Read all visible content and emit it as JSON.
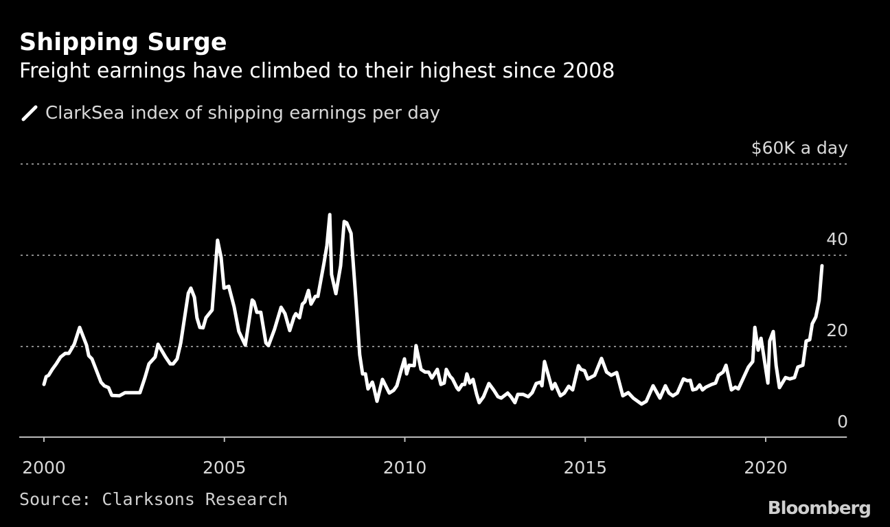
{
  "chart_data": {
    "type": "line",
    "title": "Shipping Surge",
    "subtitle": "Freight earnings have climbed to their highest since 2008",
    "legend": [
      "ClarkSea index of shipping earnings per day"
    ],
    "source": "Source: Clarksons Research",
    "logo": "Bloomberg",
    "xlabel": "",
    "ylabel": "",
    "y_unit_label": "$60K a day",
    "xlim": [
      2000,
      2022.25
    ],
    "ylim": [
      0,
      60
    ],
    "x_ticks": [
      2000,
      2005,
      2010,
      2015,
      2020
    ],
    "x_tick_labels": [
      "2000",
      "2005",
      "2010",
      "2015",
      "2020"
    ],
    "y_ticks": [
      0,
      20,
      40,
      60
    ],
    "y_tick_labels": [
      "0",
      "20",
      "40",
      "$60K a day"
    ],
    "grid": true,
    "line_color": "#ffffff",
    "series": [
      {
        "name": "ClarkSea index of shipping earnings per day",
        "x": [
          2000.0,
          2000.06,
          2000.13,
          2000.23,
          2000.34,
          2000.46,
          2000.59,
          2000.69,
          2000.84,
          2000.99,
          2001.18,
          2001.24,
          2001.33,
          2001.58,
          2001.67,
          2001.79,
          2001.88,
          2002.09,
          2002.25,
          2002.66,
          2002.8,
          2002.91,
          2003.08,
          2003.16,
          2003.37,
          2003.5,
          2003.58,
          2003.69,
          2003.79,
          2004.0,
          2004.07,
          2004.17,
          2004.24,
          2004.32,
          2004.41,
          2004.49,
          2004.61,
          2004.66,
          2004.81,
          2004.91,
          2004.99,
          2005.12,
          2005.27,
          2005.4,
          2005.58,
          2005.77,
          2005.82,
          2005.9,
          2006.01,
          2006.15,
          2006.22,
          2006.39,
          2006.57,
          2006.68,
          2006.81,
          2006.93,
          2006.98,
          2007.08,
          2007.16,
          2007.23,
          2007.33,
          2007.4,
          2007.52,
          2007.59,
          2007.76,
          2007.84,
          2007.92,
          2007.97,
          2008.09,
          2008.22,
          2008.32,
          2008.39,
          2008.51,
          2008.64,
          2008.75,
          2008.83,
          2008.91,
          2008.98,
          2009.1,
          2009.13,
          2009.23,
          2009.38,
          2009.57,
          2009.69,
          2009.78,
          2009.88,
          2009.99,
          2010.05,
          2010.12,
          2010.26,
          2010.31,
          2010.45,
          2010.56,
          2010.66,
          2010.75,
          2010.9,
          2011.0,
          2011.09,
          2011.15,
          2011.25,
          2011.32,
          2011.44,
          2011.49,
          2011.59,
          2011.66,
          2011.72,
          2011.8,
          2011.89,
          2011.99,
          2012.06,
          2012.18,
          2012.33,
          2012.46,
          2012.58,
          2012.67,
          2012.85,
          2012.94,
          2013.05,
          2013.13,
          2013.28,
          2013.42,
          2013.53,
          2013.64,
          2013.76,
          2013.8,
          2013.87,
          2014.01,
          2014.08,
          2014.16,
          2014.31,
          2014.42,
          2014.54,
          2014.65,
          2014.81,
          2014.88,
          2014.98,
          2015.07,
          2015.26,
          2015.45,
          2015.59,
          2015.72,
          2015.87,
          2016.04,
          2016.19,
          2016.33,
          2016.56,
          2016.69,
          2016.88,
          2017.07,
          2017.22,
          2017.32,
          2017.43,
          2017.55,
          2017.72,
          2017.83,
          2017.91,
          2017.98,
          2018.08,
          2018.17,
          2018.25,
          2018.34,
          2018.5,
          2018.61,
          2018.69,
          2018.82,
          2018.9,
          2019.05,
          2019.16,
          2019.24,
          2019.52,
          2019.64,
          2019.7,
          2019.79,
          2019.87,
          2020.06,
          2020.11,
          2020.21,
          2020.29,
          2020.38,
          2020.55,
          2020.67,
          2020.8,
          2020.89,
          2021.03,
          2021.12,
          2021.22,
          2021.29,
          2021.39,
          2021.48,
          2021.56
        ],
        "y": [
          11.7,
          13.4,
          13.7,
          15.0,
          16.2,
          17.7,
          18.5,
          18.5,
          20.5,
          24.2,
          20.3,
          18.0,
          17.3,
          12.2,
          11.4,
          11.0,
          9.3,
          9.2,
          9.9,
          9.9,
          13.2,
          16.2,
          17.7,
          20.5,
          17.7,
          16.2,
          16.2,
          17.3,
          20.8,
          31.7,
          32.8,
          30.8,
          26.3,
          24.2,
          24.1,
          26.3,
          27.5,
          28.0,
          43.3,
          39.5,
          32.8,
          33.2,
          28.7,
          23.3,
          20.3,
          30.2,
          29.8,
          27.5,
          27.5,
          20.8,
          20.2,
          23.8,
          28.6,
          27.2,
          23.5,
          26.5,
          27.2,
          26.3,
          29.3,
          29.8,
          32.3,
          29.3,
          31.0,
          31.0,
          38.3,
          42.1,
          48.9,
          35.8,
          31.6,
          37.7,
          47.4,
          47.1,
          44.8,
          30.8,
          18.2,
          14.0,
          14.0,
          10.7,
          12.2,
          11.4,
          8.0,
          12.8,
          9.8,
          10.4,
          11.4,
          14.3,
          17.3,
          14.0,
          15.9,
          15.8,
          20.2,
          15.0,
          14.4,
          14.4,
          13.1,
          15.0,
          11.7,
          12.0,
          15.0,
          13.5,
          12.9,
          11.0,
          10.5,
          11.7,
          11.7,
          14.0,
          12.0,
          12.8,
          9.5,
          7.7,
          9.0,
          11.9,
          10.5,
          9.0,
          8.7,
          9.8,
          9.0,
          7.7,
          9.5,
          9.5,
          9.0,
          9.9,
          11.9,
          12.2,
          11.4,
          16.7,
          12.8,
          10.7,
          11.9,
          9.2,
          9.8,
          11.3,
          10.5,
          15.8,
          15.0,
          14.7,
          12.9,
          13.7,
          17.4,
          14.4,
          13.7,
          14.3,
          9.2,
          9.9,
          8.7,
          7.4,
          8.0,
          11.4,
          8.7,
          11.4,
          9.8,
          9.2,
          9.8,
          12.9,
          12.5,
          12.6,
          10.5,
          10.7,
          11.6,
          10.5,
          11.1,
          11.7,
          12.0,
          13.7,
          14.4,
          15.9,
          10.5,
          11.1,
          10.7,
          15.5,
          16.7,
          24.2,
          19.2,
          21.8,
          12.0,
          21.2,
          23.3,
          15.8,
          11.0,
          13.2,
          12.9,
          13.2,
          15.5,
          15.9,
          21.2,
          21.5,
          25.0,
          26.5,
          30.1,
          37.7
        ]
      }
    ]
  }
}
